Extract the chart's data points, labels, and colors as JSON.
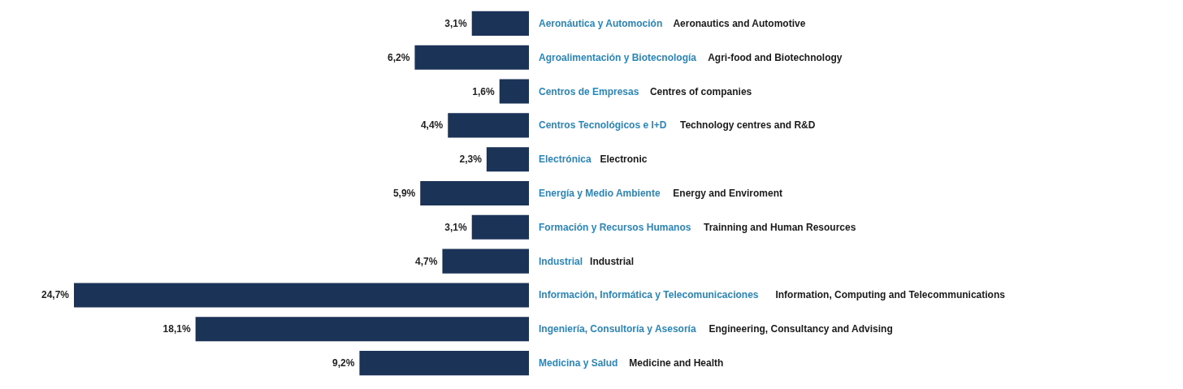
{
  "chart_data": {
    "type": "bar",
    "orientation": "horizontal",
    "categories": [
      "Aeronáutica y Automoción",
      "Agroalimentación y Biotecnología",
      "Centros de Empresas",
      "Centros Tecnológicos e I+D",
      "Electrónica",
      "Energía y Medio Ambiente",
      "Formación y Recursos Humanos",
      "Industrial",
      "Información, Informática y Telecomunicaciones",
      "Ingeniería, Consultoría y Asesoría",
      "Medicina y Salud"
    ],
    "values": [
      3.1,
      6.2,
      1.6,
      4.4,
      2.3,
      5.9,
      3.1,
      4.7,
      24.7,
      18.1,
      9.2
    ],
    "value_labels": [
      "3,1%",
      "6,2%",
      "1,6%",
      "4,4%",
      "2,3%",
      "5,9%",
      "3,1%",
      "4,7%",
      "24,7%",
      "18,1%",
      "9,2%"
    ],
    "color": "#1c3358",
    "annotations": [
      "Aeronautics and Automotive",
      "Agri-food and Biotechnology",
      "Centres of companies",
      "Technology centres and R&D",
      "Electronic",
      "Energy and Enviroment",
      "Trainning and Human Resources",
      "Industrial",
      "Information, Computing and Telecommunications",
      "Engineering, Consultancy and Advising",
      "Medicine and Health"
    ],
    "grid": false
  }
}
